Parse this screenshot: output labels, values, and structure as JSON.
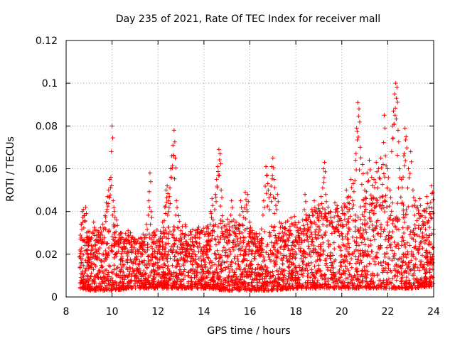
{
  "chart_data": {
    "type": "scatter",
    "title": "Day 235 of 2021, Rate Of TEC Index for receiver mall",
    "xlabel": "GPS time / hours",
    "ylabel": "ROTI / TECUs",
    "xlim": [
      8,
      24
    ],
    "ylim": [
      0,
      0.12
    ],
    "xticks": [
      8,
      10,
      12,
      14,
      16,
      18,
      20,
      22,
      24
    ],
    "xtick_labels": [
      "8",
      "10",
      "12",
      "14",
      "16",
      "18",
      "20",
      "22",
      "24"
    ],
    "yticks": [
      0,
      0.02,
      0.04,
      0.06,
      0.08,
      0.1,
      0.12
    ],
    "ytick_labels": [
      "0",
      "0.02",
      "0.04",
      "0.06",
      "0.08",
      "0.1",
      "0.12"
    ],
    "grid": true,
    "marker": "+",
    "marker_color": "#ff0000",
    "series": [
      {
        "name": "ROTI",
        "points": [
          [
            8.6,
            0.022
          ],
          [
            8.65,
            0.034
          ],
          [
            8.7,
            0.04
          ],
          [
            8.75,
            0.041
          ],
          [
            8.8,
            0.038
          ],
          [
            8.85,
            0.042
          ],
          [
            8.9,
            0.03
          ],
          [
            8.95,
            0.026
          ],
          [
            9.0,
            0.028
          ],
          [
            9.1,
            0.024
          ],
          [
            9.2,
            0.035
          ],
          [
            9.3,
            0.031
          ],
          [
            9.4,
            0.022
          ],
          [
            9.5,
            0.027
          ],
          [
            9.6,
            0.034
          ],
          [
            9.7,
            0.038
          ],
          [
            9.75,
            0.044
          ],
          [
            9.8,
            0.047
          ],
          [
            9.85,
            0.05
          ],
          [
            9.9,
            0.055
          ],
          [
            9.95,
            0.056
          ],
          [
            10.0,
            0.08
          ],
          [
            10.05,
            0.045
          ],
          [
            10.1,
            0.04
          ],
          [
            10.2,
            0.036
          ],
          [
            10.3,
            0.029
          ],
          [
            10.4,
            0.03
          ],
          [
            10.5,
            0.025
          ],
          [
            10.6,
            0.027
          ],
          [
            10.7,
            0.031
          ],
          [
            10.8,
            0.03
          ],
          [
            10.9,
            0.028
          ],
          [
            11.0,
            0.027
          ],
          [
            11.1,
            0.022
          ],
          [
            11.2,
            0.025
          ],
          [
            11.3,
            0.024
          ],
          [
            11.4,
            0.026
          ],
          [
            11.5,
            0.034
          ],
          [
            11.6,
            0.045
          ],
          [
            11.65,
            0.058
          ],
          [
            11.7,
            0.04
          ],
          [
            11.8,
            0.03
          ],
          [
            11.9,
            0.025
          ],
          [
            12.0,
            0.024
          ],
          [
            12.1,
            0.028
          ],
          [
            12.2,
            0.035
          ],
          [
            12.3,
            0.042
          ],
          [
            12.35,
            0.05
          ],
          [
            12.4,
            0.052
          ],
          [
            12.45,
            0.045
          ],
          [
            12.5,
            0.047
          ],
          [
            12.55,
            0.06
          ],
          [
            12.6,
            0.066
          ],
          [
            12.65,
            0.071
          ],
          [
            12.7,
            0.078
          ],
          [
            12.75,
            0.065
          ],
          [
            12.8,
            0.045
          ],
          [
            12.9,
            0.038
          ],
          [
            13.0,
            0.029
          ],
          [
            13.1,
            0.025
          ],
          [
            13.2,
            0.026
          ],
          [
            13.3,
            0.022
          ],
          [
            13.4,
            0.024
          ],
          [
            13.5,
            0.026
          ],
          [
            13.6,
            0.028
          ],
          [
            13.7,
            0.03
          ],
          [
            13.8,
            0.025
          ],
          [
            13.9,
            0.022
          ],
          [
            14.0,
            0.023
          ],
          [
            14.1,
            0.024
          ],
          [
            14.2,
            0.026
          ],
          [
            14.3,
            0.04
          ],
          [
            14.35,
            0.046
          ],
          [
            14.4,
            0.036
          ],
          [
            14.5,
            0.048
          ],
          [
            14.55,
            0.055
          ],
          [
            14.6,
            0.061
          ],
          [
            14.65,
            0.069
          ],
          [
            14.7,
            0.067
          ],
          [
            14.75,
            0.05
          ],
          [
            14.8,
            0.038
          ],
          [
            14.9,
            0.033
          ],
          [
            15.0,
            0.03
          ],
          [
            15.1,
            0.031
          ],
          [
            15.2,
            0.045
          ],
          [
            15.3,
            0.036
          ],
          [
            15.4,
            0.035
          ],
          [
            15.5,
            0.032
          ],
          [
            15.6,
            0.045
          ],
          [
            15.7,
            0.04
          ],
          [
            15.8,
            0.049
          ],
          [
            15.85,
            0.043
          ],
          [
            15.9,
            0.048
          ],
          [
            16.0,
            0.035
          ],
          [
            16.1,
            0.03
          ],
          [
            16.2,
            0.029
          ],
          [
            16.3,
            0.028
          ],
          [
            16.4,
            0.025
          ],
          [
            16.5,
            0.027
          ],
          [
            16.6,
            0.045
          ],
          [
            16.7,
            0.061
          ],
          [
            16.75,
            0.057
          ],
          [
            16.8,
            0.05
          ],
          [
            16.9,
            0.048
          ],
          [
            16.95,
            0.061
          ],
          [
            17.0,
            0.065
          ],
          [
            17.05,
            0.055
          ],
          [
            17.1,
            0.046
          ],
          [
            17.2,
            0.048
          ],
          [
            17.3,
            0.035
          ],
          [
            17.4,
            0.028
          ],
          [
            17.5,
            0.026
          ],
          [
            17.6,
            0.029
          ],
          [
            17.7,
            0.031
          ],
          [
            17.8,
            0.024
          ],
          [
            17.9,
            0.026
          ],
          [
            18.0,
            0.028
          ],
          [
            18.1,
            0.03
          ],
          [
            18.2,
            0.032
          ],
          [
            18.3,
            0.036
          ],
          [
            18.4,
            0.048
          ],
          [
            18.5,
            0.034
          ],
          [
            18.6,
            0.038
          ],
          [
            18.7,
            0.041
          ],
          [
            18.8,
            0.045
          ],
          [
            18.9,
            0.04
          ],
          [
            19.0,
            0.043
          ],
          [
            19.1,
            0.047
          ],
          [
            19.2,
            0.06
          ],
          [
            19.25,
            0.063
          ],
          [
            19.3,
            0.048
          ],
          [
            19.4,
            0.042
          ],
          [
            19.5,
            0.04
          ],
          [
            19.6,
            0.035
          ],
          [
            19.7,
            0.044
          ],
          [
            19.8,
            0.038
          ],
          [
            19.9,
            0.036
          ],
          [
            20.0,
            0.042
          ],
          [
            20.1,
            0.039
          ],
          [
            20.2,
            0.05
          ],
          [
            20.3,
            0.047
          ],
          [
            20.4,
            0.055
          ],
          [
            20.5,
            0.053
          ],
          [
            20.6,
            0.064
          ],
          [
            20.65,
            0.079
          ],
          [
            20.7,
            0.091
          ],
          [
            20.75,
            0.088
          ],
          [
            20.8,
            0.07
          ],
          [
            20.9,
            0.062
          ],
          [
            21.0,
            0.05
          ],
          [
            21.1,
            0.058
          ],
          [
            21.2,
            0.064
          ],
          [
            21.3,
            0.056
          ],
          [
            21.4,
            0.055
          ],
          [
            21.5,
            0.063
          ],
          [
            21.6,
            0.06
          ],
          [
            21.7,
            0.065
          ],
          [
            21.8,
            0.062
          ],
          [
            21.85,
            0.085
          ],
          [
            21.9,
            0.066
          ],
          [
            22.0,
            0.06
          ],
          [
            22.1,
            0.05
          ],
          [
            22.2,
            0.08
          ],
          [
            22.25,
            0.087
          ],
          [
            22.3,
            0.095
          ],
          [
            22.35,
            0.1
          ],
          [
            22.4,
            0.098
          ],
          [
            22.45,
            0.078
          ],
          [
            22.5,
            0.06
          ],
          [
            22.6,
            0.055
          ],
          [
            22.7,
            0.066
          ],
          [
            22.75,
            0.079
          ],
          [
            22.8,
            0.075
          ],
          [
            22.9,
            0.06
          ],
          [
            23.0,
            0.068
          ],
          [
            23.1,
            0.05
          ],
          [
            23.2,
            0.045
          ],
          [
            23.3,
            0.042
          ],
          [
            23.4,
            0.046
          ],
          [
            23.5,
            0.038
          ],
          [
            23.6,
            0.04
          ],
          [
            23.7,
            0.047
          ],
          [
            23.8,
            0.042
          ],
          [
            23.9,
            0.052
          ],
          [
            23.95,
            0.049
          ]
        ],
        "band": [
          [
            8.6,
            0.004,
            0.028
          ],
          [
            9.0,
            0.003,
            0.032
          ],
          [
            10.0,
            0.003,
            0.034
          ],
          [
            11.0,
            0.004,
            0.028
          ],
          [
            12.0,
            0.004,
            0.032
          ],
          [
            13.0,
            0.004,
            0.034
          ],
          [
            14.0,
            0.004,
            0.033
          ],
          [
            15.0,
            0.003,
            0.038
          ],
          [
            16.0,
            0.003,
            0.032
          ],
          [
            17.0,
            0.003,
            0.034
          ],
          [
            18.0,
            0.004,
            0.038
          ],
          [
            19.0,
            0.004,
            0.042
          ],
          [
            20.0,
            0.004,
            0.044
          ],
          [
            21.0,
            0.004,
            0.046
          ],
          [
            22.0,
            0.004,
            0.048
          ],
          [
            23.0,
            0.004,
            0.044
          ],
          [
            24.0,
            0.005,
            0.04
          ]
        ]
      }
    ]
  }
}
